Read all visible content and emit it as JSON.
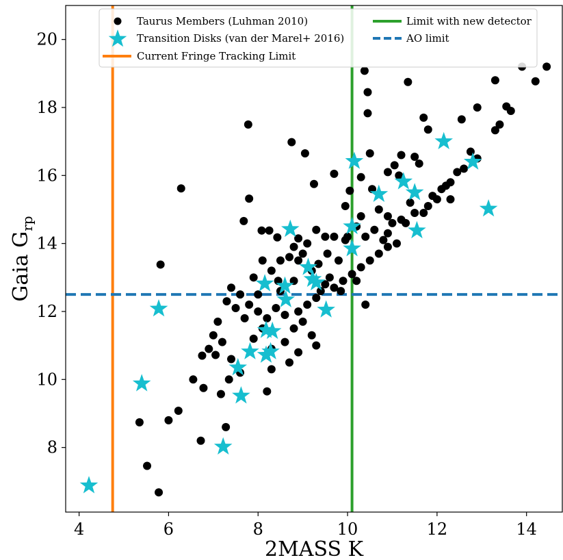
{
  "chart_data": {
    "type": "scatter",
    "xlabel": "2MASS K",
    "ylabel_main": "Gaia G",
    "ylabel_sub": "rp",
    "xlim": [
      3.7,
      14.8
    ],
    "ylim": [
      6.1,
      21.0
    ],
    "xticks": [
      4,
      6,
      8,
      10,
      12,
      14
    ],
    "yticks": [
      8,
      10,
      12,
      14,
      16,
      18,
      20
    ],
    "grid": false,
    "legend_position": "top",
    "legend": {
      "members": "Taurus Members (Luhman 2010)",
      "disks": "Transition Disks (van der Marel+ 2016)",
      "fringe": "Current Fringe Tracking Limit",
      "detector": "Limit with new detector",
      "ao": "AO limit"
    },
    "colors": {
      "members": "#000000",
      "disks": "#17becf",
      "fringe": "#ff7f0e",
      "detector": "#2ca02c",
      "ao": "#1f77b4"
    },
    "reference_lines": {
      "fringe_limit_k": 4.75,
      "detector_limit_k": 10.1,
      "ao_limit_grp": 12.5
    },
    "members": [
      [
        7.78,
        17.5
      ],
      [
        6.28,
        15.62
      ],
      [
        5.82,
        13.38
      ],
      [
        5.35,
        8.74
      ],
      [
        5.52,
        7.46
      ],
      [
        5.78,
        6.68
      ],
      [
        6.0,
        8.8
      ],
      [
        6.22,
        9.08
      ],
      [
        6.72,
        8.2
      ],
      [
        6.75,
        10.7
      ],
      [
        7.28,
        8.6
      ],
      [
        7.17,
        9.57
      ],
      [
        6.55,
        10.0
      ],
      [
        6.78,
        9.75
      ],
      [
        7.05,
        10.72
      ],
      [
        7.8,
        15.32
      ],
      [
        7.68,
        14.66
      ],
      [
        8.75,
        16.98
      ],
      [
        9.05,
        16.65
      ],
      [
        8.08,
        14.38
      ],
      [
        8.25,
        14.38
      ],
      [
        8.43,
        14.18
      ],
      [
        10.38,
        19.08
      ],
      [
        10.45,
        18.45
      ],
      [
        10.45,
        17.83
      ],
      [
        11.35,
        18.75
      ],
      [
        13.3,
        18.8
      ],
      [
        13.9,
        19.2
      ],
      [
        14.45,
        19.2
      ],
      [
        14.2,
        18.77
      ],
      [
        9.7,
        16.05
      ],
      [
        9.25,
        15.75
      ],
      [
        9.95,
        15.1
      ],
      [
        10.3,
        15.95
      ],
      [
        10.05,
        15.55
      ],
      [
        10.5,
        16.65
      ],
      [
        10.55,
        15.6
      ],
      [
        10.9,
        16.1
      ],
      [
        11.2,
        16.6
      ],
      [
        11.6,
        16.35
      ],
      [
        12.55,
        17.65
      ],
      [
        12.9,
        18.0
      ],
      [
        13.55,
        18.03
      ],
      [
        13.3,
        17.33
      ],
      [
        13.4,
        17.5
      ],
      [
        13.65,
        17.9
      ],
      [
        12.75,
        16.7
      ],
      [
        11.05,
        16.3
      ],
      [
        11.15,
        16.0
      ],
      [
        11.5,
        16.55
      ],
      [
        11.7,
        17.7
      ],
      [
        11.8,
        17.35
      ],
      [
        12.45,
        16.1
      ],
      [
        12.6,
        16.2
      ],
      [
        12.0,
        15.3
      ],
      [
        11.8,
        15.1
      ],
      [
        12.3,
        15.3
      ],
      [
        12.1,
        15.6
      ],
      [
        12.2,
        15.7
      ],
      [
        11.4,
        15.2
      ],
      [
        11.5,
        14.9
      ],
      [
        11.2,
        14.7
      ],
      [
        11.3,
        14.6
      ],
      [
        10.9,
        14.3
      ],
      [
        10.8,
        14.1
      ],
      [
        10.6,
        14.4
      ],
      [
        10.4,
        14.2
      ],
      [
        10.2,
        14.5
      ],
      [
        10.3,
        14.8
      ],
      [
        9.95,
        14.1
      ],
      [
        9.7,
        14.2
      ],
      [
        9.5,
        14.2
      ],
      [
        9.3,
        14.4
      ],
      [
        9.1,
        14.0
      ],
      [
        8.9,
        14.15
      ],
      [
        8.8,
        13.9
      ],
      [
        8.7,
        13.6
      ],
      [
        8.9,
        13.5
      ],
      [
        9.2,
        13.2
      ],
      [
        9.0,
        13.7
      ],
      [
        8.5,
        13.5
      ],
      [
        8.3,
        13.2
      ],
      [
        8.1,
        13.5
      ],
      [
        7.9,
        13.0
      ],
      [
        8.0,
        12.5
      ],
      [
        7.6,
        12.5
      ],
      [
        7.4,
        12.7
      ],
      [
        7.3,
        12.3
      ],
      [
        7.5,
        12.1
      ],
      [
        7.8,
        12.2
      ],
      [
        8.0,
        12.0
      ],
      [
        8.2,
        11.8
      ],
      [
        8.4,
        12.1
      ],
      [
        8.6,
        11.9
      ],
      [
        8.9,
        12.0
      ],
      [
        9.1,
        12.2
      ],
      [
        9.3,
        12.4
      ],
      [
        9.5,
        12.8
      ],
      [
        9.7,
        12.7
      ],
      [
        9.9,
        12.9
      ],
      [
        10.1,
        13.1
      ],
      [
        10.3,
        13.3
      ],
      [
        10.5,
        13.5
      ],
      [
        10.7,
        13.7
      ],
      [
        10.9,
        13.9
      ],
      [
        11.1,
        14.0
      ],
      [
        10.4,
        12.2
      ],
      [
        9.8,
        13.5
      ],
      [
        9.6,
        13.0
      ],
      [
        9.4,
        12.6
      ],
      [
        7.1,
        11.7
      ],
      [
        7.0,
        11.3
      ],
      [
        6.9,
        10.9
      ],
      [
        7.2,
        11.1
      ],
      [
        7.4,
        10.6
      ],
      [
        7.6,
        10.2
      ],
      [
        7.9,
        11.2
      ],
      [
        8.1,
        11.5
      ],
      [
        8.3,
        10.9
      ],
      [
        8.2,
        9.65
      ],
      [
        8.3,
        10.3
      ],
      [
        8.6,
        11.1
      ],
      [
        8.8,
        11.5
      ],
      [
        9.0,
        11.7
      ],
      [
        9.2,
        11.3
      ],
      [
        8.9,
        10.8
      ],
      [
        8.7,
        10.5
      ],
      [
        9.3,
        11.0
      ],
      [
        7.35,
        10.0
      ],
      [
        8.5,
        12.6
      ],
      [
        10.7,
        15.0
      ],
      [
        10.9,
        14.8
      ],
      [
        11.7,
        14.9
      ],
      [
        12.3,
        15.8
      ],
      [
        12.9,
        16.5
      ],
      [
        10.0,
        14.2
      ],
      [
        9.55,
        13.7
      ],
      [
        8.45,
        12.9
      ],
      [
        9.85,
        12.6
      ],
      [
        10.2,
        12.9
      ],
      [
        7.7,
        11.8
      ],
      [
        8.8,
        12.9
      ],
      [
        9.35,
        13.4
      ],
      [
        11.0,
        14.6
      ],
      [
        11.9,
        15.4
      ]
    ],
    "transition_disks": [
      [
        4.22,
        6.88
      ],
      [
        5.4,
        9.88
      ],
      [
        5.78,
        12.08
      ],
      [
        7.22,
        8.02
      ],
      [
        7.62,
        9.52
      ],
      [
        7.55,
        10.35
      ],
      [
        7.82,
        10.82
      ],
      [
        8.18,
        10.72
      ],
      [
        8.28,
        10.82
      ],
      [
        8.18,
        11.45
      ],
      [
        8.32,
        11.42
      ],
      [
        8.15,
        12.82
      ],
      [
        8.6,
        12.75
      ],
      [
        8.62,
        12.35
      ],
      [
        8.72,
        14.42
      ],
      [
        9.12,
        13.3
      ],
      [
        9.22,
        12.95
      ],
      [
        9.3,
        12.85
      ],
      [
        9.52,
        12.05
      ],
      [
        10.1,
        14.5
      ],
      [
        10.1,
        13.85
      ],
      [
        10.15,
        16.42
      ],
      [
        10.7,
        15.45
      ],
      [
        11.25,
        15.82
      ],
      [
        11.5,
        15.5
      ],
      [
        11.55,
        14.38
      ],
      [
        12.15,
        17.0
      ],
      [
        12.8,
        16.4
      ],
      [
        13.15,
        15.02
      ]
    ]
  }
}
